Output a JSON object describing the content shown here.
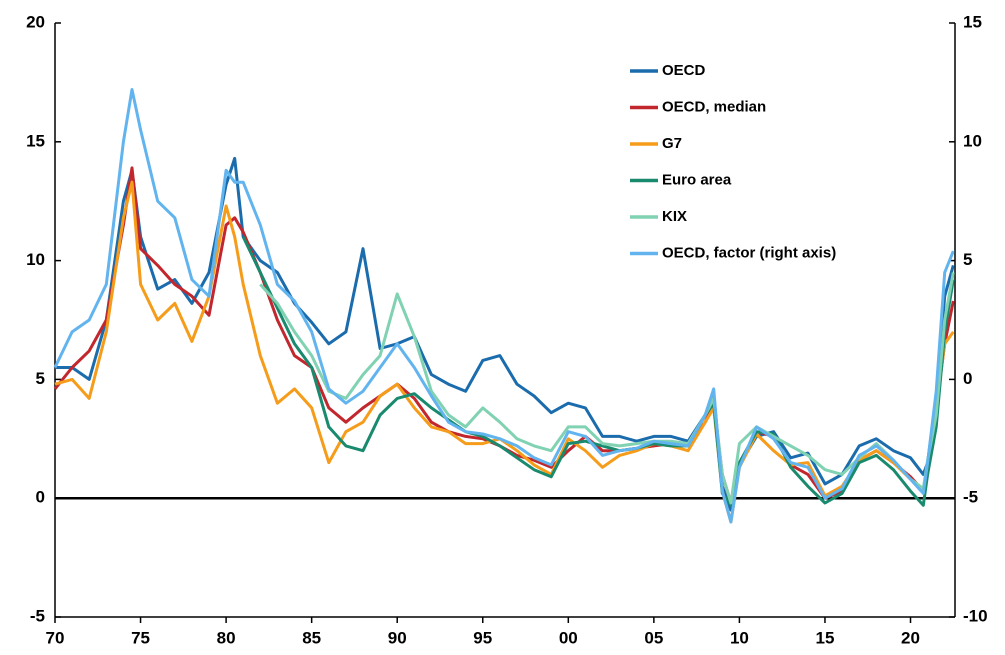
{
  "chart_data": {
    "type": "line",
    "x": [
      1970,
      1971,
      1972,
      1973,
      1974,
      1974.5,
      1975,
      1976,
      1977,
      1978,
      1979,
      1980,
      1980.5,
      1981,
      1982,
      1983,
      1984,
      1985,
      1986,
      1987,
      1988,
      1989,
      1990,
      1991,
      1992,
      1993,
      1994,
      1995,
      1996,
      1997,
      1998,
      1999,
      2000,
      2001,
      2002,
      2003,
      2004,
      2005,
      2006,
      2007,
      2008,
      2008.5,
      2009,
      2009.5,
      2010,
      2011,
      2012,
      2013,
      2014,
      2015,
      2016,
      2017,
      2018,
      2019,
      2020,
      2020.75,
      2021,
      2021.5,
      2022,
      2022.5
    ],
    "xlim": [
      1970,
      2022.6
    ],
    "xticks": [
      {
        "value": 1970,
        "label": "70"
      },
      {
        "value": 1975,
        "label": "75"
      },
      {
        "value": 1980,
        "label": "80"
      },
      {
        "value": 1985,
        "label": "85"
      },
      {
        "value": 1990,
        "label": "90"
      },
      {
        "value": 1995,
        "label": "95"
      },
      {
        "value": 2000,
        "label": "00"
      },
      {
        "value": 2005,
        "label": "05"
      },
      {
        "value": 2010,
        "label": "10"
      },
      {
        "value": 2015,
        "label": "15"
      },
      {
        "value": 2020,
        "label": "20"
      }
    ],
    "ylim": [
      -5,
      20
    ],
    "yticks": [
      -5,
      0,
      5,
      10,
      15,
      20
    ],
    "y2lim": [
      -10,
      15
    ],
    "y2ticks": [
      -10,
      -5,
      0,
      5,
      10,
      15
    ],
    "legend": "upper right",
    "series": [
      {
        "name": "OECD",
        "color": "#1b6cad",
        "values": [
          5.5,
          5.5,
          5.0,
          7.5,
          12.5,
          13.8,
          11,
          8.8,
          9.2,
          8.2,
          9.5,
          13.2,
          14.3,
          11,
          10,
          9.5,
          8.2,
          7.4,
          6.5,
          7.0,
          10.5,
          6.3,
          6.5,
          6.8,
          5.2,
          4.8,
          4.5,
          5.8,
          6.0,
          4.8,
          4.3,
          3.6,
          4.0,
          3.8,
          2.6,
          2.6,
          2.4,
          2.6,
          2.6,
          2.4,
          3.5,
          4.4,
          0.5,
          -0.5,
          1.4,
          2.6,
          2.8,
          1.7,
          1.9,
          0.6,
          1.0,
          2.2,
          2.5,
          2.0,
          1.7,
          1.0,
          1.5,
          4.2,
          8.5,
          9.8
        ]
      },
      {
        "name": "OECD, median",
        "color": "#c1272d",
        "values": [
          4.6,
          5.5,
          6.2,
          7.5,
          11.5,
          13.9,
          10.5,
          9.8,
          9.0,
          8.5,
          7.7,
          11.5,
          11.8,
          11.2,
          9.5,
          7.5,
          6.0,
          5.5,
          3.8,
          3.2,
          3.8,
          4.3,
          4.8,
          4.2,
          3.2,
          2.8,
          2.6,
          2.5,
          2.2,
          1.8,
          1.6,
          1.3,
          2.0,
          2.6,
          2.0,
          2.0,
          2.1,
          2.2,
          2.3,
          2.2,
          3.2,
          4.0,
          1.0,
          -0.2,
          1.4,
          2.8,
          2.6,
          1.4,
          1.0,
          0.0,
          0.3,
          1.6,
          2.0,
          1.5,
          0.9,
          0.3,
          1.2,
          3.8,
          6.5,
          8.3
        ]
      },
      {
        "name": "G7",
        "color": "#f59c1a",
        "values": [
          4.8,
          5.0,
          4.2,
          7.0,
          11.8,
          13.3,
          9.0,
          7.5,
          8.2,
          6.6,
          8.5,
          12.3,
          11.0,
          9.0,
          6.0,
          4.0,
          4.6,
          3.8,
          1.5,
          2.8,
          3.2,
          4.3,
          4.8,
          3.8,
          3.0,
          2.8,
          2.3,
          2.3,
          2.5,
          2.0,
          1.4,
          1.0,
          2.5,
          2.0,
          1.3,
          1.8,
          2.0,
          2.3,
          2.2,
          2.0,
          3.2,
          3.8,
          0.3,
          -1.0,
          1.3,
          2.7,
          2.0,
          1.4,
          1.5,
          0.1,
          0.5,
          1.6,
          2.0,
          1.5,
          0.8,
          0.4,
          1.0,
          3.8,
          6.5,
          7.0
        ]
      },
      {
        "name": "Euro area",
        "color": "#1a8a6e",
        "values": [
          null,
          null,
          null,
          null,
          null,
          null,
          null,
          null,
          null,
          null,
          null,
          null,
          null,
          11.0,
          9.5,
          8.0,
          6.5,
          5.5,
          3.0,
          2.2,
          2.0,
          3.5,
          4.2,
          4.4,
          3.8,
          3.3,
          2.8,
          2.6,
          2.2,
          1.7,
          1.2,
          0.9,
          2.3,
          2.4,
          2.2,
          2.0,
          2.1,
          2.3,
          2.2,
          2.2,
          3.5,
          4.0,
          0.2,
          -0.3,
          1.5,
          2.8,
          2.7,
          1.3,
          0.5,
          -0.2,
          0.2,
          1.5,
          1.8,
          1.2,
          0.3,
          -0.3,
          1.0,
          3.0,
          7.0,
          9.2
        ]
      },
      {
        "name": "KIX",
        "color": "#80d2b2",
        "values": [
          null,
          null,
          null,
          null,
          null,
          null,
          null,
          null,
          null,
          null,
          null,
          null,
          null,
          null,
          9.0,
          8.2,
          7.0,
          6.0,
          4.5,
          4.2,
          5.2,
          6.0,
          8.6,
          6.8,
          4.5,
          3.5,
          3.0,
          3.8,
          3.2,
          2.5,
          2.2,
          2.0,
          3.0,
          3.0,
          2.3,
          2.2,
          2.3,
          2.4,
          2.4,
          2.3,
          3.5,
          4.2,
          1.0,
          -0.2,
          2.3,
          3.0,
          2.6,
          2.2,
          1.8,
          1.2,
          1.0,
          1.7,
          2.3,
          1.6,
          0.8,
          0.4,
          1.6,
          3.5,
          7.5,
          9.5
        ]
      },
      {
        "name": "OECD, factor (right axis)",
        "color": "#62b4ef",
        "axis": "y2",
        "values": [
          0.5,
          2.0,
          2.5,
          4.0,
          10.0,
          12.2,
          10.5,
          7.5,
          6.8,
          4.2,
          3.5,
          8.8,
          8.3,
          8.3,
          6.5,
          4.0,
          3.3,
          2.0,
          -0.4,
          -1.0,
          -0.5,
          0.5,
          1.5,
          0.5,
          -0.7,
          -1.8,
          -2.2,
          -2.3,
          -2.5,
          -2.8,
          -3.3,
          -3.6,
          -2.2,
          -2.4,
          -3.2,
          -3.0,
          -2.9,
          -2.6,
          -2.7,
          -2.8,
          -1.5,
          -0.4,
          -4.7,
          -6.0,
          -3.7,
          -2.0,
          -2.5,
          -3.5,
          -3.7,
          -5.0,
          -4.6,
          -3.2,
          -2.8,
          -3.4,
          -4.2,
          -4.8,
          -3.5,
          -0.5,
          4.5,
          5.4
        ]
      }
    ]
  }
}
